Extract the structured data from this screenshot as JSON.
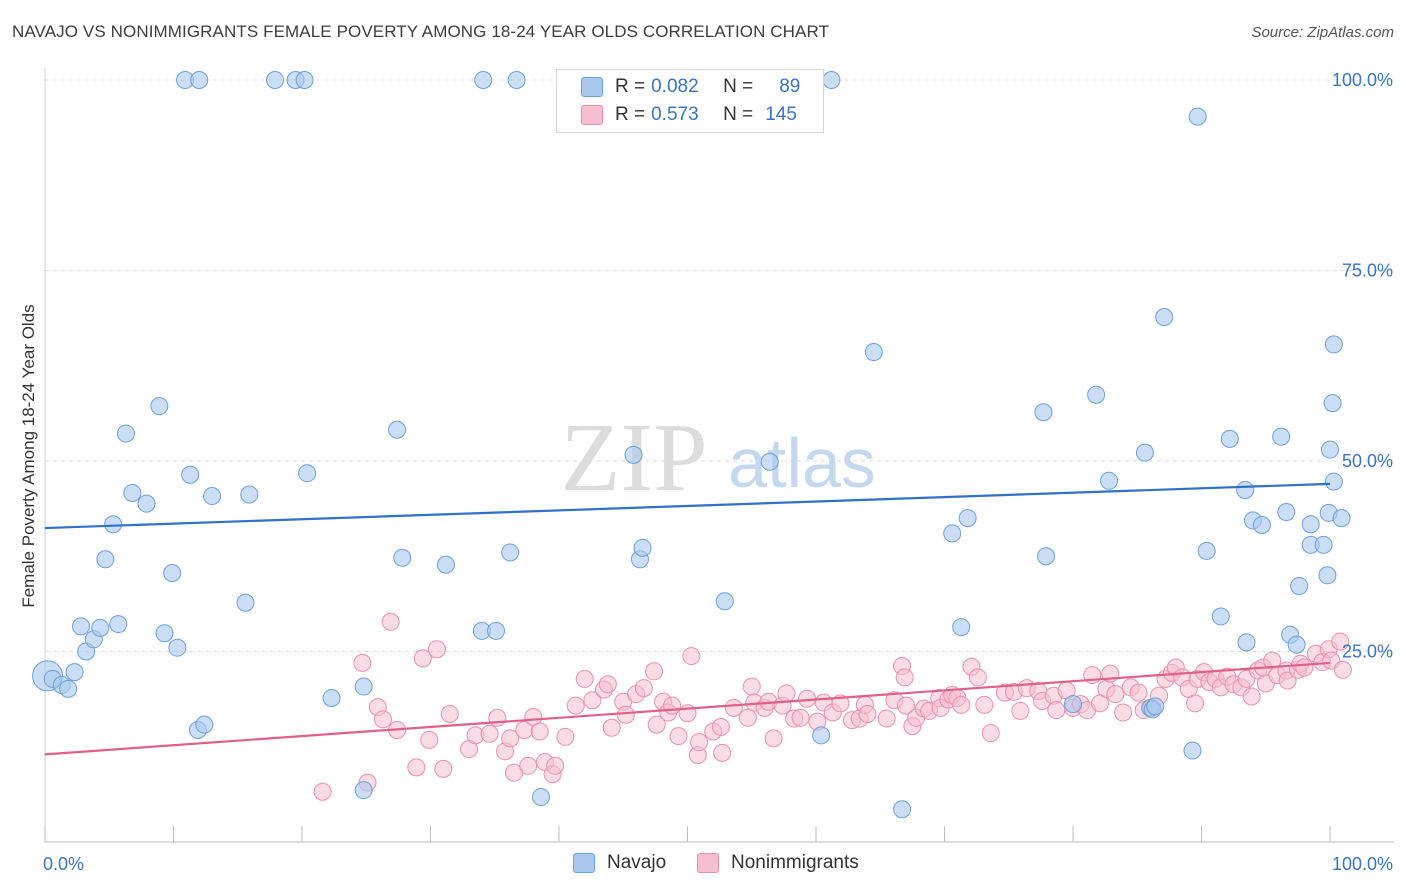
{
  "title": "NAVAJO VS NONIMMIGRANTS FEMALE POVERTY AMONG 18-24 YEAR OLDS CORRELATION CHART",
  "source": "Source: ZipAtlas.com",
  "watermark": {
    "zip": "ZIP",
    "atlas": "atlas"
  },
  "legend": {
    "navajo": {
      "r_label": "R =",
      "r_value": "0.082",
      "n_label": "N =",
      "n_value": "89"
    },
    "nonimmigrants": {
      "r_label": "R =",
      "r_value": "0.573",
      "n_label": "N =",
      "n_value": "145"
    }
  },
  "bottom_legend": {
    "navajo": "Navajo",
    "nonimmigrants": "Nonimmigrants"
  },
  "colors": {
    "navajo_fill": "#aac8ee",
    "navajo_stroke": "#6d9fdc",
    "navajo_line": "#2f72c8",
    "non_fill": "#f6bfd0",
    "non_stroke": "#ec8fad",
    "non_line": "#e0608a",
    "tick_text": "#3a74c4",
    "grid": "#dcdcdc"
  },
  "chart_data": {
    "type": "scatter",
    "title": "NAVAJO VS NONIMMIGRANTS FEMALE POVERTY AMONG 18-24 YEAR OLDS CORRELATION CHART",
    "xlabel": "",
    "ylabel": "Female Poverty Among 18-24 Year Olds",
    "xlim": [
      0,
      100
    ],
    "ylim": [
      0,
      100
    ],
    "x_ticks": [
      "0.0%",
      "100.0%"
    ],
    "y_ticks": [
      {
        "value": 25,
        "label": "25.0%"
      },
      {
        "value": 50,
        "label": "50.0%"
      },
      {
        "value": 75,
        "label": "75.0%"
      },
      {
        "value": 100,
        "label": "100.0%"
      }
    ],
    "grid": true,
    "legend_position": "top-center",
    "series": [
      {
        "name": "Navajo",
        "r": 0.082,
        "n": 89,
        "trend": {
          "x": [
            0,
            100
          ],
          "y": [
            41.2,
            47.0
          ]
        },
        "points": [
          [
            0.2,
            21.8
          ],
          [
            0.6,
            21.4
          ],
          [
            1.3,
            20.6
          ],
          [
            1.8,
            20.1
          ],
          [
            2.3,
            22.3
          ],
          [
            2.8,
            28.3
          ],
          [
            3.2,
            25.0
          ],
          [
            3.8,
            26.6
          ],
          [
            4.3,
            28.1
          ],
          [
            4.7,
            37.1
          ],
          [
            5.3,
            41.7
          ],
          [
            5.7,
            28.6
          ],
          [
            6.3,
            53.6
          ],
          [
            6.8,
            45.8
          ],
          [
            7.9,
            44.4
          ],
          [
            8.9,
            57.2
          ],
          [
            9.3,
            27.4
          ],
          [
            9.9,
            35.3
          ],
          [
            10.3,
            25.5
          ],
          [
            11.3,
            48.2
          ],
          [
            11.9,
            14.7
          ],
          [
            12.4,
            15.4
          ],
          [
            13.0,
            45.4
          ],
          [
            15.9,
            45.6
          ],
          [
            15.6,
            31.4
          ],
          [
            20.4,
            48.4
          ],
          [
            22.3,
            18.9
          ],
          [
            24.8,
            6.8
          ],
          [
            24.8,
            20.4
          ],
          [
            27.4,
            54.1
          ],
          [
            27.8,
            37.3
          ],
          [
            31.2,
            36.4
          ],
          [
            34.0,
            27.7
          ],
          [
            35.1,
            27.7
          ],
          [
            36.2,
            38.0
          ],
          [
            38.6,
            5.9
          ],
          [
            46.3,
            37.1
          ],
          [
            46.5,
            38.6
          ],
          [
            45.8,
            50.8
          ],
          [
            52.9,
            31.6
          ],
          [
            56.4,
            49.9
          ],
          [
            60.4,
            14.0
          ],
          [
            64.5,
            64.3
          ],
          [
            66.7,
            4.3
          ],
          [
            70.6,
            40.5
          ],
          [
            71.8,
            42.5
          ],
          [
            71.3,
            28.2
          ],
          [
            77.7,
            56.4
          ],
          [
            77.9,
            37.5
          ],
          [
            80.0,
            18.1
          ],
          [
            81.8,
            58.7
          ],
          [
            82.8,
            47.4
          ],
          [
            85.6,
            51.1
          ],
          [
            86.0,
            17.6
          ],
          [
            86.2,
            17.4
          ],
          [
            86.4,
            17.8
          ],
          [
            87.1,
            68.9
          ],
          [
            89.7,
            95.2
          ],
          [
            89.3,
            12.0
          ],
          [
            90.4,
            38.2
          ],
          [
            91.5,
            29.6
          ],
          [
            92.2,
            52.9
          ],
          [
            93.4,
            46.2
          ],
          [
            94.0,
            42.2
          ],
          [
            93.5,
            26.2
          ],
          [
            94.7,
            41.6
          ],
          [
            96.2,
            53.2
          ],
          [
            96.6,
            43.3
          ],
          [
            96.9,
            27.2
          ],
          [
            97.6,
            33.6
          ],
          [
            97.4,
            25.9
          ],
          [
            98.5,
            41.7
          ],
          [
            98.5,
            39.0
          ],
          [
            99.9,
            43.2
          ],
          [
            99.8,
            35.0
          ],
          [
            99.5,
            39.0
          ],
          [
            100.0,
            51.5
          ],
          [
            100.2,
            57.6
          ],
          [
            100.9,
            42.5
          ],
          [
            100.3,
            47.3
          ],
          [
            100.3,
            65.3
          ],
          [
            10.9,
            100
          ],
          [
            12.0,
            100
          ],
          [
            17.9,
            100
          ],
          [
            19.5,
            100
          ],
          [
            20.2,
            100
          ],
          [
            34.1,
            100
          ],
          [
            36.7,
            100
          ],
          [
            61.2,
            100
          ]
        ]
      },
      {
        "name": "Nonimmigrants",
        "r": 0.573,
        "n": 145,
        "trend": {
          "x": [
            0,
            100
          ],
          "y": [
            11.5,
            23.5
          ]
        },
        "points": [
          [
            21.6,
            6.6
          ],
          [
            24.7,
            23.5
          ],
          [
            25.1,
            7.8
          ],
          [
            25.9,
            17.7
          ],
          [
            26.3,
            16.1
          ],
          [
            26.9,
            28.9
          ],
          [
            27.4,
            14.7
          ],
          [
            28.9,
            9.8
          ],
          [
            29.4,
            24.1
          ],
          [
            29.9,
            13.4
          ],
          [
            30.5,
            25.3
          ],
          [
            31.0,
            9.6
          ],
          [
            31.5,
            16.8
          ],
          [
            33.0,
            12.2
          ],
          [
            33.5,
            14.0
          ],
          [
            34.6,
            14.2
          ],
          [
            35.2,
            16.3
          ],
          [
            35.8,
            11.9
          ],
          [
            36.2,
            13.6
          ],
          [
            36.5,
            9.1
          ],
          [
            37.3,
            14.7
          ],
          [
            38.0,
            16.4
          ],
          [
            38.5,
            14.5
          ],
          [
            38.9,
            10.5
          ],
          [
            39.5,
            8.9
          ],
          [
            39.7,
            10.0
          ],
          [
            40.5,
            13.8
          ],
          [
            41.3,
            17.9
          ],
          [
            42.0,
            21.4
          ],
          [
            42.6,
            18.6
          ],
          [
            43.5,
            20.0
          ],
          [
            43.8,
            20.7
          ],
          [
            44.1,
            15.0
          ],
          [
            45.0,
            18.4
          ],
          [
            45.2,
            16.7
          ],
          [
            46.0,
            19.4
          ],
          [
            46.6,
            20.2
          ],
          [
            47.4,
            22.4
          ],
          [
            47.6,
            15.4
          ],
          [
            48.1,
            18.4
          ],
          [
            48.5,
            17.0
          ],
          [
            48.8,
            17.9
          ],
          [
            49.3,
            13.9
          ],
          [
            50.0,
            16.9
          ],
          [
            50.3,
            24.4
          ],
          [
            50.8,
            11.4
          ],
          [
            50.9,
            13.1
          ],
          [
            52.0,
            14.5
          ],
          [
            52.6,
            15.1
          ],
          [
            52.7,
            11.7
          ],
          [
            53.6,
            17.6
          ],
          [
            54.7,
            16.3
          ],
          [
            55.0,
            20.4
          ],
          [
            55.2,
            18.3
          ],
          [
            56.0,
            17.6
          ],
          [
            56.3,
            18.4
          ],
          [
            56.7,
            13.6
          ],
          [
            57.4,
            17.9
          ],
          [
            57.7,
            19.5
          ],
          [
            58.3,
            16.2
          ],
          [
            58.8,
            16.3
          ],
          [
            59.3,
            18.8
          ],
          [
            60.1,
            15.8
          ],
          [
            60.6,
            18.3
          ],
          [
            61.3,
            17.0
          ],
          [
            61.9,
            18.2
          ],
          [
            62.8,
            16.0
          ],
          [
            63.4,
            16.2
          ],
          [
            63.8,
            18.0
          ],
          [
            64.0,
            16.8
          ],
          [
            65.5,
            16.2
          ],
          [
            66.1,
            18.6
          ],
          [
            66.7,
            23.1
          ],
          [
            66.9,
            21.6
          ],
          [
            67.0,
            17.9
          ],
          [
            67.5,
            15.2
          ],
          [
            67.8,
            16.3
          ],
          [
            68.4,
            17.5
          ],
          [
            68.8,
            17.2
          ],
          [
            69.6,
            18.9
          ],
          [
            69.7,
            17.6
          ],
          [
            70.3,
            18.7
          ],
          [
            70.6,
            19.3
          ],
          [
            71.0,
            18.9
          ],
          [
            71.3,
            18.0
          ],
          [
            72.1,
            23.0
          ],
          [
            72.6,
            21.6
          ],
          [
            73.1,
            18.0
          ],
          [
            73.6,
            14.3
          ],
          [
            74.7,
            19.6
          ],
          [
            75.4,
            19.7
          ],
          [
            75.9,
            17.2
          ],
          [
            76.4,
            20.2
          ],
          [
            77.3,
            19.8
          ],
          [
            77.6,
            18.5
          ],
          [
            78.5,
            19.2
          ],
          [
            78.7,
            17.3
          ],
          [
            79.5,
            19.9
          ],
          [
            80.0,
            17.6
          ],
          [
            80.6,
            18.1
          ],
          [
            81.1,
            17.3
          ],
          [
            81.5,
            21.9
          ],
          [
            82.1,
            18.2
          ],
          [
            82.6,
            20.1
          ],
          [
            82.9,
            22.1
          ],
          [
            83.3,
            19.4
          ],
          [
            83.9,
            17.0
          ],
          [
            84.5,
            20.3
          ],
          [
            85.1,
            19.6
          ],
          [
            85.5,
            17.3
          ],
          [
            86.1,
            17.6
          ],
          [
            86.7,
            19.2
          ],
          [
            87.2,
            21.4
          ],
          [
            87.7,
            22.2
          ],
          [
            88.0,
            22.9
          ],
          [
            88.5,
            21.6
          ],
          [
            89.0,
            20.1
          ],
          [
            89.5,
            18.2
          ],
          [
            89.7,
            21.4
          ],
          [
            90.2,
            22.3
          ],
          [
            90.6,
            21.0
          ],
          [
            91.1,
            21.4
          ],
          [
            91.5,
            20.3
          ],
          [
            92.0,
            21.7
          ],
          [
            92.5,
            20.7
          ],
          [
            93.1,
            20.3
          ],
          [
            93.5,
            21.4
          ],
          [
            93.9,
            19.1
          ],
          [
            94.4,
            22.5
          ],
          [
            94.8,
            22.9
          ],
          [
            95.0,
            20.8
          ],
          [
            95.5,
            23.8
          ],
          [
            95.9,
            21.9
          ],
          [
            96.6,
            22.5
          ],
          [
            96.7,
            21.2
          ],
          [
            97.5,
            22.6
          ],
          [
            97.7,
            23.4
          ],
          [
            98.0,
            22.9
          ],
          [
            98.9,
            24.7
          ],
          [
            99.4,
            23.6
          ],
          [
            99.9,
            25.3
          ],
          [
            100.1,
            23.8
          ],
          [
            100.8,
            26.3
          ],
          [
            101.0,
            22.6
          ],
          [
            37.6,
            10.0
          ]
        ]
      }
    ]
  }
}
